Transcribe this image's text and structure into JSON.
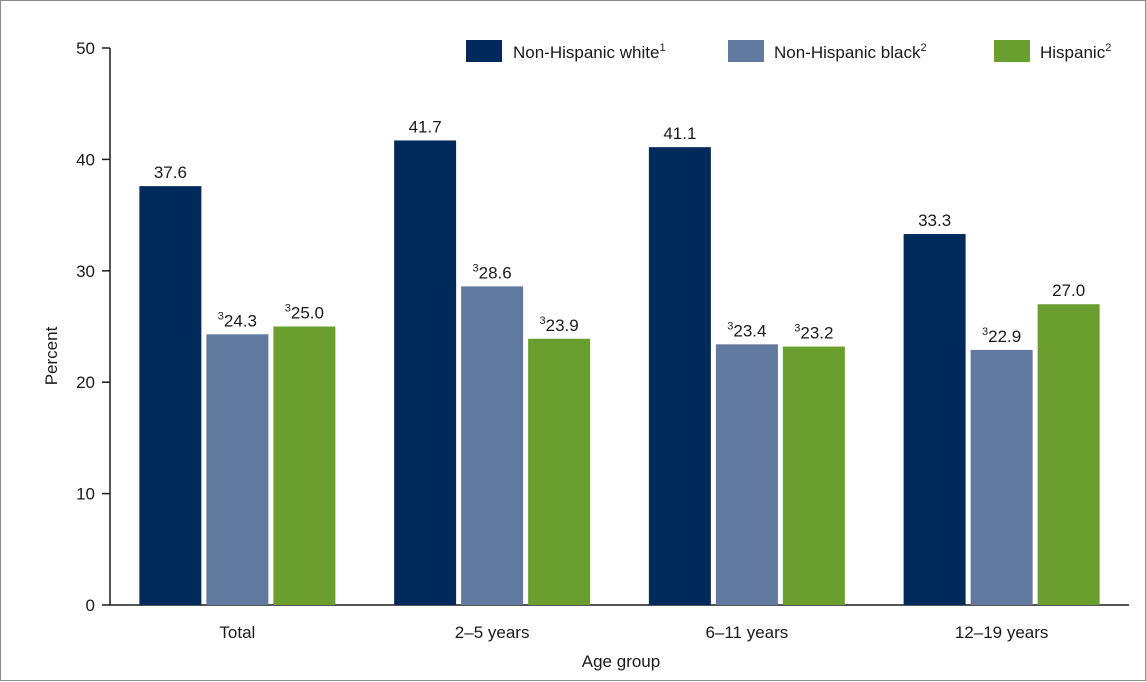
{
  "chart_data": {
    "type": "bar",
    "categories": [
      "Total",
      "2–5 years",
      "6–11 years",
      "12–19 years"
    ],
    "series": [
      {
        "name": "Non-Hispanic white",
        "name_sup": "1",
        "color": "#002a5c",
        "values": [
          37.6,
          41.7,
          41.1,
          33.3
        ],
        "labels": [
          "37.6",
          "41.7",
          "41.1",
          "33.3"
        ],
        "label_sups": [
          "",
          "",
          "",
          ""
        ]
      },
      {
        "name": "Non-Hispanic black",
        "name_sup": "2",
        "color": "#61789f",
        "values": [
          24.3,
          28.6,
          23.4,
          22.9
        ],
        "labels": [
          "24.3",
          "28.6",
          "23.4",
          "22.9"
        ],
        "label_sups": [
          "3",
          "3",
          "3",
          "3"
        ]
      },
      {
        "name": "Hispanic",
        "name_sup": "2",
        "color": "#6a9e2e",
        "values": [
          25.0,
          23.9,
          23.2,
          27.0
        ],
        "labels": [
          "25.0",
          "23.9",
          "23.2",
          "27.0"
        ],
        "label_sups": [
          "3",
          "3",
          "3",
          ""
        ]
      }
    ],
    "xlabel": "Age group",
    "ylabel": "Percent",
    "ylim": [
      0,
      50
    ],
    "yticks": [
      0,
      10,
      20,
      30,
      40,
      50
    ],
    "grid": false,
    "legend_position": "top-right"
  }
}
